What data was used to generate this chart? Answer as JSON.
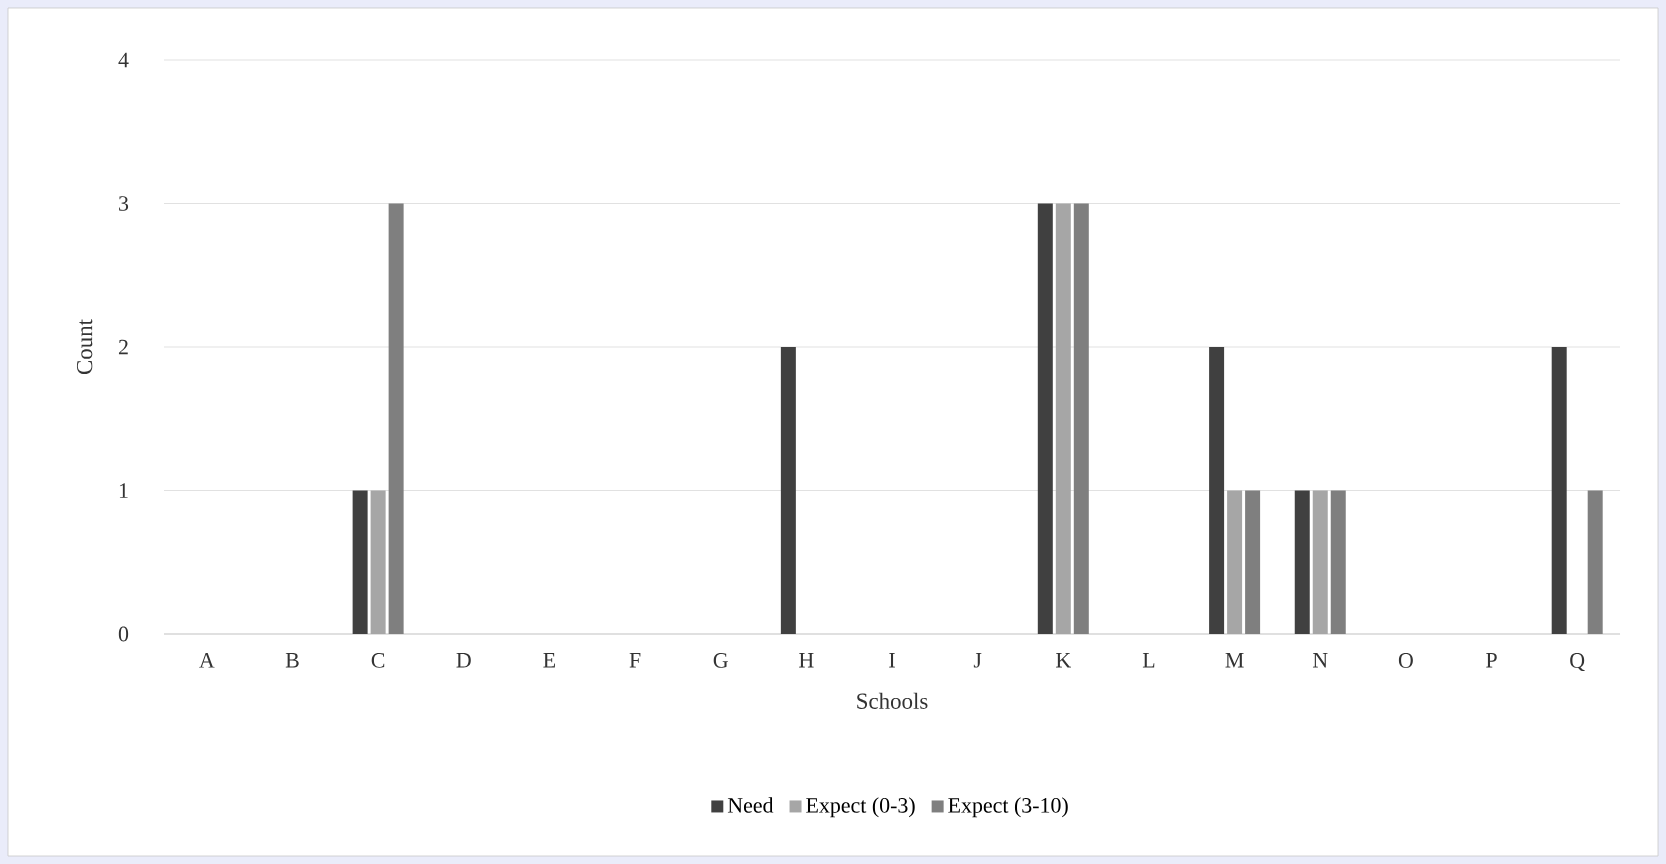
{
  "chart_data": {
    "type": "bar",
    "xlabel": "Schools",
    "ylabel": "Count",
    "categories": [
      "A",
      "B",
      "C",
      "D",
      "E",
      "F",
      "G",
      "H",
      "I",
      "J",
      "K",
      "L",
      "M",
      "N",
      "O",
      "P",
      "Q"
    ],
    "series": [
      {
        "name": "Need",
        "color": "#404040",
        "values": [
          0,
          0,
          1,
          0,
          0,
          0,
          0,
          2,
          0,
          0,
          3,
          0,
          2,
          1,
          0,
          0,
          2
        ]
      },
      {
        "name": "Expect (0-3)",
        "color": "#a6a6a6",
        "values": [
          0,
          0,
          1,
          0,
          0,
          0,
          0,
          0,
          0,
          0,
          3,
          0,
          1,
          1,
          0,
          0,
          0
        ]
      },
      {
        "name": "Expect (3-10)",
        "color": "#7f7f7f",
        "values": [
          0,
          0,
          3,
          0,
          0,
          0,
          0,
          0,
          0,
          0,
          3,
          0,
          1,
          1,
          0,
          0,
          1
        ]
      }
    ],
    "ylim": [
      0,
      4
    ],
    "yticks": [
      0,
      1,
      2,
      3,
      4
    ],
    "grid": "y",
    "legend": "bottom"
  }
}
